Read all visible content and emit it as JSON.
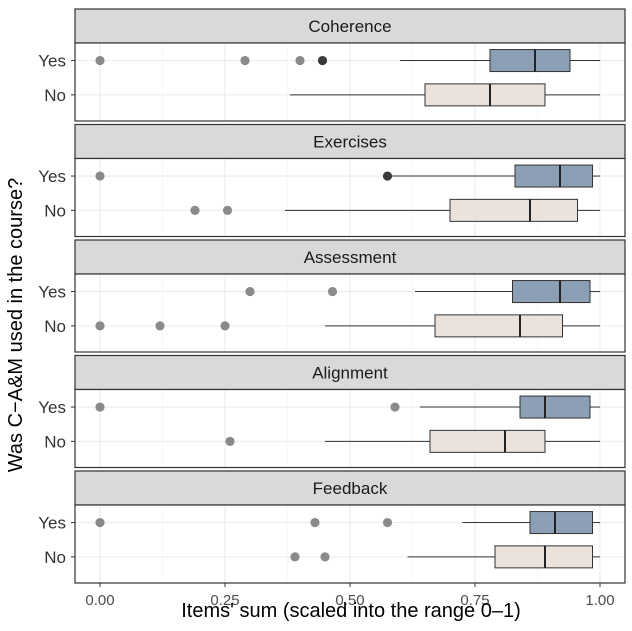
{
  "chart_data": {
    "type": "boxplot",
    "orientation": "horizontal",
    "xlabel": "Items' sum (scaled into the range 0–1)",
    "ylabel": "Was C−A&M used in the course?",
    "xlim": [
      -0.05,
      1.05
    ],
    "x_ticks": [
      0,
      0.25,
      0.5,
      0.75,
      1.0
    ],
    "x_tick_labels": [
      "0.00",
      "0.25",
      "0.50",
      "0.75",
      "1.00"
    ],
    "categories": [
      "Yes",
      "No"
    ],
    "colors": {
      "Yes": "#8c9fb4",
      "No": "#ebe2db",
      "outlier": "#8a8a8a",
      "outlier_overlap": "#3a3a3a"
    },
    "facets": [
      {
        "title": "Coherence",
        "groups": [
          {
            "category": "Yes",
            "whisker_low": 0.6,
            "q1": 0.78,
            "median": 0.87,
            "q3": 0.94,
            "whisker_high": 1.0,
            "outliers": [
              0.0,
              0.29,
              0.4,
              0.445
            ],
            "overlapping_outliers": [
              0.445
            ]
          },
          {
            "category": "No",
            "whisker_low": 0.38,
            "q1": 0.65,
            "median": 0.78,
            "q3": 0.89,
            "whisker_high": 1.0,
            "outliers": [],
            "overlapping_outliers": []
          }
        ]
      },
      {
        "title": "Exercises",
        "groups": [
          {
            "category": "Yes",
            "whisker_low": 0.58,
            "q1": 0.83,
            "median": 0.92,
            "q3": 0.985,
            "whisker_high": 1.0,
            "outliers": [
              0.0,
              0.575
            ],
            "overlapping_outliers": [
              0.575
            ]
          },
          {
            "category": "No",
            "whisker_low": 0.37,
            "q1": 0.7,
            "median": 0.86,
            "q3": 0.955,
            "whisker_high": 1.0,
            "outliers": [
              0.19,
              0.255
            ],
            "overlapping_outliers": []
          }
        ]
      },
      {
        "title": "Assessment",
        "groups": [
          {
            "category": "Yes",
            "whisker_low": 0.63,
            "q1": 0.825,
            "median": 0.92,
            "q3": 0.98,
            "whisker_high": 1.0,
            "outliers": [
              0.3,
              0.465
            ],
            "overlapping_outliers": []
          },
          {
            "category": "No",
            "whisker_low": 0.45,
            "q1": 0.67,
            "median": 0.84,
            "q3": 0.925,
            "whisker_high": 1.0,
            "outliers": [
              0.0,
              0.12,
              0.25
            ],
            "overlapping_outliers": []
          }
        ]
      },
      {
        "title": "Alignment",
        "groups": [
          {
            "category": "Yes",
            "whisker_low": 0.64,
            "q1": 0.84,
            "median": 0.89,
            "q3": 0.98,
            "whisker_high": 1.0,
            "outliers": [
              0.0,
              0.59
            ],
            "overlapping_outliers": []
          },
          {
            "category": "No",
            "whisker_low": 0.45,
            "q1": 0.66,
            "median": 0.81,
            "q3": 0.89,
            "whisker_high": 1.0,
            "outliers": [
              0.26
            ],
            "overlapping_outliers": []
          }
        ]
      },
      {
        "title": "Feedback",
        "groups": [
          {
            "category": "Yes",
            "whisker_low": 0.725,
            "q1": 0.86,
            "median": 0.91,
            "q3": 0.985,
            "whisker_high": 1.0,
            "outliers": [
              0.0,
              0.43,
              0.575
            ],
            "overlapping_outliers": []
          },
          {
            "category": "No",
            "whisker_low": 0.615,
            "q1": 0.79,
            "median": 0.89,
            "q3": 0.985,
            "whisker_high": 1.0,
            "outliers": [
              0.39,
              0.45
            ],
            "overlapping_outliers": []
          }
        ]
      }
    ]
  }
}
